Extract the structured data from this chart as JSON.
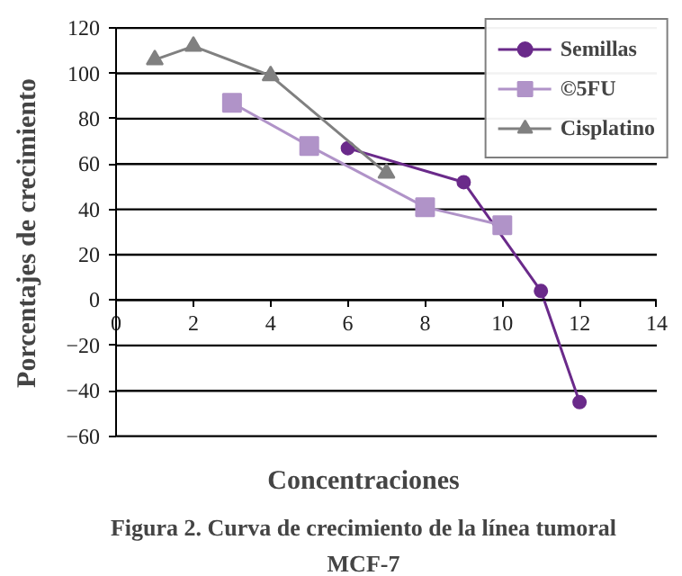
{
  "chart_data": {
    "type": "line",
    "title": "Figura 2. Curva de crecimiento de la línea tumoral\nMCF-7",
    "xlabel": "Concentraciones",
    "ylabel": "Porcentajes de crecimiento",
    "xlim": [
      0,
      14
    ],
    "xticks": [
      0,
      2,
      4,
      6,
      8,
      10,
      12,
      14
    ],
    "ylim": [
      -60,
      120
    ],
    "yticks": [
      -60,
      -40,
      -20,
      0,
      20,
      40,
      60,
      80,
      100,
      120
    ],
    "grid": "y",
    "legend": "top right",
    "series": [
      {
        "name": "Semillas",
        "color": "#6a2a8a",
        "marker": "circle",
        "x": [
          6,
          9,
          11,
          12
        ],
        "values": [
          67,
          52,
          4,
          -45
        ]
      },
      {
        "name": "©5FU",
        "color": "#b093c8",
        "marker": "square",
        "x": [
          3,
          5,
          8,
          10
        ],
        "values": [
          87,
          68,
          41,
          33
        ]
      },
      {
        "name": "Cisplatino",
        "color": "#808080",
        "marker": "triangle",
        "x": [
          1,
          2,
          4,
          7
        ],
        "values": [
          106,
          112,
          99,
          56
        ]
      }
    ]
  }
}
